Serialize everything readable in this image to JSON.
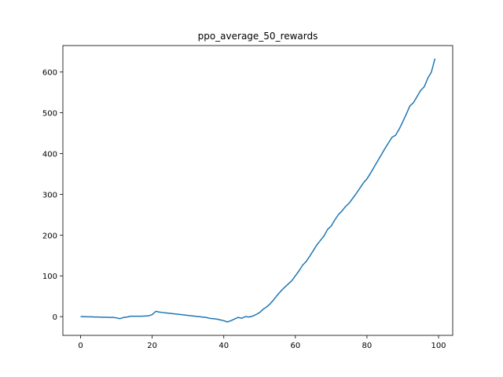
{
  "chart_data": {
    "type": "line",
    "title": "ppo_average_50_rewards",
    "x": [
      0,
      1,
      2,
      3,
      4,
      5,
      6,
      7,
      8,
      9,
      10,
      11,
      12,
      13,
      14,
      15,
      16,
      17,
      18,
      19,
      20,
      21,
      22,
      23,
      24,
      25,
      26,
      27,
      28,
      29,
      30,
      31,
      32,
      33,
      34,
      35,
      36,
      37,
      38,
      39,
      40,
      41,
      42,
      43,
      44,
      45,
      46,
      47,
      48,
      49,
      50,
      51,
      52,
      53,
      54,
      55,
      56,
      57,
      58,
      59,
      60,
      61,
      62,
      63,
      64,
      65,
      66,
      67,
      68,
      69,
      70,
      71,
      72,
      73,
      74,
      75,
      76,
      77,
      78,
      79,
      80,
      81,
      82,
      83,
      84,
      85,
      86,
      87,
      88,
      89,
      90,
      91,
      92,
      93,
      94,
      95,
      96,
      97,
      98,
      99
    ],
    "series": [
      {
        "name": "ppo_average_50_rewards",
        "color": "#1f77b4",
        "values": [
          0,
          0,
          -0.5,
          -0.5,
          -1,
          -1,
          -1.5,
          -1.5,
          -2,
          -2,
          -3,
          -5,
          -2,
          -1,
          1,
          1,
          1,
          1,
          1.5,
          2,
          5,
          13,
          11,
          10,
          9,
          8,
          7,
          6,
          5,
          4,
          3,
          2,
          1,
          0,
          -1,
          -2,
          -4,
          -5,
          -6,
          -8,
          -10,
          -13,
          -10,
          -6,
          -2,
          -4,
          0,
          -1,
          1,
          5,
          10,
          18,
          24,
          32,
          42,
          53,
          63,
          72,
          80,
          88,
          100,
          112,
          126,
          135,
          148,
          162,
          176,
          187,
          198,
          214,
          222,
          237,
          250,
          259,
          270,
          278,
          290,
          302,
          315,
          328,
          338,
          352,
          367,
          382,
          397,
          412,
          426,
          440,
          445,
          460,
          478,
          497,
          517,
          525,
          540,
          555,
          564,
          585,
          600,
          633
        ]
      }
    ],
    "xlim": [
      -4.95,
      103.95
    ],
    "ylim": [
      -46,
      665
    ],
    "xticks": [
      0,
      20,
      40,
      60,
      80,
      100
    ],
    "yticks": [
      0,
      100,
      200,
      300,
      400,
      500,
      600
    ]
  }
}
